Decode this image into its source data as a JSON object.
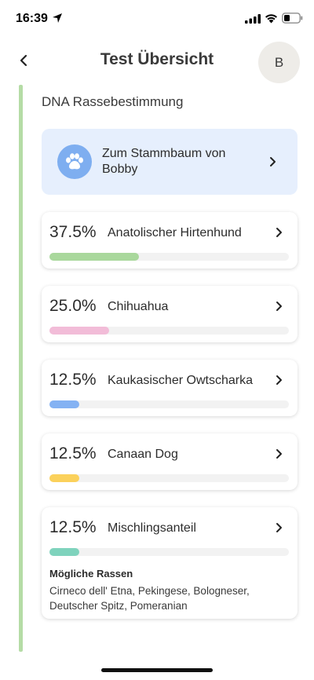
{
  "status_bar": {
    "time": "16:39"
  },
  "header": {
    "back_icon": "chevron-left-icon",
    "title": "Test Übersicht",
    "avatar_initial": "B"
  },
  "section": {
    "title": "DNA Rassebestimmung"
  },
  "pedigree": {
    "icon": "paw-icon",
    "label": "Zum Stammbaum von Bobby"
  },
  "breeds": [
    {
      "percent": "37.5%",
      "name": "Anatolischer Hirtenhund",
      "fraction": 0.375,
      "color": "#a9d89c"
    },
    {
      "percent": "25.0%",
      "name": "Chihuahua",
      "fraction": 0.25,
      "color": "#f2bcd8"
    },
    {
      "percent": "12.5%",
      "name": "Kaukasischer Owtscharka",
      "fraction": 0.125,
      "color": "#84b2f3"
    },
    {
      "percent": "12.5%",
      "name": "Canaan Dog",
      "fraction": 0.125,
      "color": "#fbd15b"
    },
    {
      "percent": "12.5%",
      "name": "Mischlingsanteil",
      "fraction": 0.125,
      "color": "#7fd3bd",
      "possible_title": "Mögliche Rassen",
      "possible_list": "Cirneco dell' Etna, Pekingese, Bologneser, Deutscher Spitz, Pomeranian"
    }
  ]
}
